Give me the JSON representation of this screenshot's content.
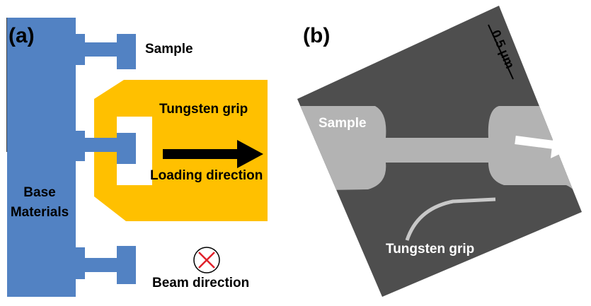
{
  "panels": [
    {
      "label": "(a)",
      "sample": "Sample",
      "grip": "Tungsten grip",
      "loading": "Loading direction",
      "base": [
        "Base",
        "Materials"
      ],
      "beam": "Beam direction"
    },
    {
      "label": "(b)",
      "sample": "Sample",
      "grip": "Tungsten grip",
      "scale": "0.5 μm"
    }
  ]
}
